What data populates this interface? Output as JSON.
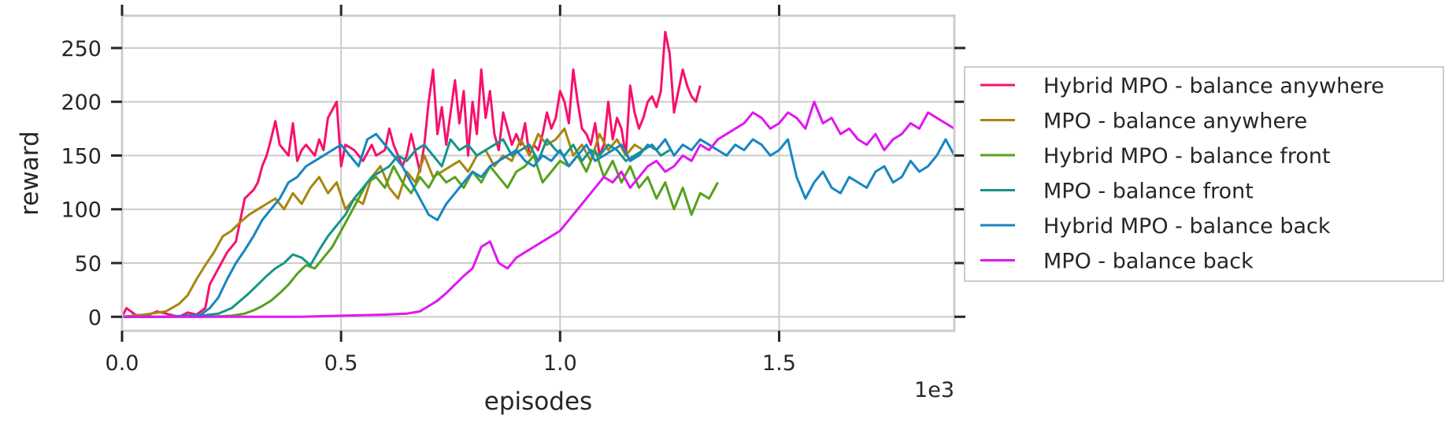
{
  "chart_data": {
    "type": "line",
    "xlabel": "episodes",
    "ylabel": "reward",
    "x_multiplier_label": "1e3",
    "xlim": [
      0,
      1.9
    ],
    "ylim": [
      -13,
      280
    ],
    "xticks": [
      0.0,
      0.5,
      1.0,
      1.5
    ],
    "xtick_labels": [
      "0.0",
      "0.5",
      "1.0",
      "1.5"
    ],
    "yticks": [
      0,
      50,
      100,
      150,
      200,
      250
    ],
    "ytick_labels": [
      "0",
      "50",
      "100",
      "150",
      "200",
      "250"
    ],
    "grid": true,
    "legend_position": "right, outside plot",
    "series": [
      {
        "name": "Hybrid MPO - balance anywhere",
        "color": "#f7106e",
        "x": [
          0.0,
          0.01,
          0.03,
          0.05,
          0.08,
          0.1,
          0.13,
          0.15,
          0.17,
          0.19,
          0.2,
          0.22,
          0.24,
          0.26,
          0.27,
          0.28,
          0.3,
          0.31,
          0.32,
          0.33,
          0.34,
          0.35,
          0.36,
          0.38,
          0.39,
          0.4,
          0.41,
          0.42,
          0.44,
          0.45,
          0.46,
          0.47,
          0.49,
          0.5,
          0.51,
          0.53,
          0.55,
          0.57,
          0.58,
          0.6,
          0.61,
          0.62,
          0.64,
          0.65,
          0.66,
          0.68,
          0.69,
          0.7,
          0.71,
          0.72,
          0.73,
          0.74,
          0.76,
          0.77,
          0.78,
          0.79,
          0.8,
          0.81,
          0.82,
          0.83,
          0.84,
          0.85,
          0.86,
          0.87,
          0.88,
          0.89,
          0.9,
          0.91,
          0.92,
          0.93,
          0.94,
          0.95,
          0.96,
          0.97,
          0.98,
          0.99,
          1.0,
          1.01,
          1.02,
          1.03,
          1.04,
          1.05,
          1.06,
          1.07,
          1.08,
          1.09,
          1.1,
          1.11,
          1.12,
          1.13,
          1.14,
          1.15,
          1.16,
          1.17,
          1.18,
          1.19,
          1.2,
          1.21,
          1.22,
          1.23,
          1.24,
          1.25,
          1.26,
          1.27,
          1.28,
          1.29,
          1.3,
          1.31,
          1.32
        ],
        "y": [
          0,
          8,
          2,
          0,
          5,
          3,
          0,
          4,
          2,
          8,
          30,
          45,
          60,
          70,
          90,
          110,
          118,
          125,
          140,
          150,
          165,
          182,
          160,
          150,
          180,
          145,
          155,
          160,
          150,
          165,
          155,
          185,
          200,
          140,
          160,
          155,
          145,
          160,
          150,
          155,
          175,
          160,
          140,
          150,
          170,
          135,
          160,
          200,
          230,
          170,
          195,
          160,
          220,
          180,
          210,
          150,
          200,
          170,
          230,
          185,
          210,
          170,
          155,
          190,
          175,
          160,
          170,
          160,
          180,
          150,
          160,
          155,
          170,
          190,
          175,
          185,
          210,
          200,
          180,
          230,
          200,
          175,
          170,
          160,
          180,
          150,
          160,
          200,
          165,
          185,
          175,
          150,
          215,
          190,
          175,
          185,
          200,
          205,
          195,
          210,
          265,
          245,
          190,
          210,
          230,
          215,
          205,
          200,
          215
        ]
      },
      {
        "name": "MPO - balance anywhere",
        "color": "#a8860e",
        "x": [
          0.0,
          0.05,
          0.1,
          0.13,
          0.15,
          0.17,
          0.19,
          0.21,
          0.23,
          0.25,
          0.27,
          0.29,
          0.31,
          0.33,
          0.35,
          0.37,
          0.39,
          0.41,
          0.43,
          0.45,
          0.47,
          0.49,
          0.51,
          0.53,
          0.55,
          0.57,
          0.59,
          0.61,
          0.63,
          0.65,
          0.67,
          0.69,
          0.71,
          0.73,
          0.75,
          0.77,
          0.79,
          0.81,
          0.83,
          0.85,
          0.87,
          0.89,
          0.91,
          0.93,
          0.95,
          0.97,
          0.99,
          1.01,
          1.03,
          1.05,
          1.07,
          1.09,
          1.11,
          1.13,
          1.15,
          1.17,
          1.19
        ],
        "y": [
          0,
          2,
          5,
          12,
          20,
          35,
          48,
          60,
          75,
          80,
          88,
          95,
          100,
          105,
          110,
          100,
          115,
          105,
          120,
          130,
          115,
          125,
          100,
          110,
          105,
          130,
          140,
          120,
          110,
          135,
          125,
          150,
          130,
          135,
          140,
          145,
          135,
          150,
          155,
          140,
          150,
          145,
          165,
          150,
          170,
          160,
          165,
          175,
          150,
          160,
          145,
          170,
          155,
          165,
          150,
          160,
          155
        ]
      },
      {
        "name": "Hybrid MPO - balance front",
        "color": "#56a11e",
        "x": [
          0.0,
          0.1,
          0.2,
          0.25,
          0.28,
          0.3,
          0.32,
          0.34,
          0.36,
          0.38,
          0.4,
          0.42,
          0.44,
          0.46,
          0.48,
          0.5,
          0.52,
          0.54,
          0.56,
          0.58,
          0.6,
          0.62,
          0.64,
          0.66,
          0.68,
          0.7,
          0.72,
          0.74,
          0.76,
          0.78,
          0.8,
          0.82,
          0.84,
          0.86,
          0.88,
          0.9,
          0.92,
          0.94,
          0.96,
          0.98,
          1.0,
          1.02,
          1.04,
          1.06,
          1.08,
          1.1,
          1.12,
          1.14,
          1.16,
          1.18,
          1.2,
          1.22,
          1.24,
          1.26,
          1.28,
          1.3,
          1.32,
          1.34,
          1.36
        ],
        "y": [
          0,
          0,
          0,
          1,
          3,
          6,
          10,
          15,
          22,
          30,
          40,
          48,
          45,
          55,
          65,
          80,
          95,
          110,
          125,
          130,
          120,
          140,
          125,
          115,
          130,
          120,
          135,
          125,
          130,
          120,
          135,
          125,
          140,
          130,
          120,
          135,
          140,
          150,
          125,
          135,
          145,
          140,
          150,
          135,
          155,
          130,
          145,
          125,
          140,
          120,
          130,
          110,
          125,
          100,
          120,
          95,
          115,
          110,
          125
        ]
      },
      {
        "name": "MPO - balance front",
        "color": "#17948a",
        "x": [
          0.0,
          0.1,
          0.18,
          0.22,
          0.25,
          0.27,
          0.29,
          0.31,
          0.33,
          0.35,
          0.37,
          0.39,
          0.41,
          0.43,
          0.45,
          0.47,
          0.49,
          0.51,
          0.53,
          0.55,
          0.57,
          0.59,
          0.61,
          0.63,
          0.65,
          0.67,
          0.69,
          0.71,
          0.73,
          0.75,
          0.77,
          0.79,
          0.81,
          0.83,
          0.85,
          0.87,
          0.89,
          0.91,
          0.93,
          0.95,
          0.97,
          0.99,
          1.01,
          1.03,
          1.05,
          1.07,
          1.09,
          1.11,
          1.13,
          1.15,
          1.17,
          1.19,
          1.21,
          1.23,
          1.25
        ],
        "y": [
          0,
          0,
          1,
          3,
          8,
          15,
          22,
          30,
          38,
          45,
          50,
          58,
          55,
          48,
          62,
          75,
          85,
          95,
          110,
          120,
          130,
          135,
          140,
          150,
          145,
          155,
          160,
          150,
          140,
          165,
          155,
          160,
          150,
          155,
          160,
          165,
          150,
          155,
          160,
          145,
          165,
          155,
          150,
          160,
          145,
          155,
          150,
          160,
          155,
          145,
          150,
          155,
          160,
          150,
          155
        ]
      },
      {
        "name": "Hybrid MPO - balance back",
        "color": "#1786c2",
        "x": [
          0.0,
          0.1,
          0.18,
          0.2,
          0.22,
          0.24,
          0.26,
          0.28,
          0.3,
          0.32,
          0.34,
          0.36,
          0.38,
          0.4,
          0.42,
          0.44,
          0.46,
          0.48,
          0.5,
          0.52,
          0.54,
          0.56,
          0.58,
          0.6,
          0.62,
          0.64,
          0.66,
          0.68,
          0.7,
          0.72,
          0.74,
          0.76,
          0.78,
          0.8,
          0.82,
          0.84,
          0.86,
          0.88,
          0.9,
          0.92,
          0.94,
          0.96,
          0.98,
          1.0,
          1.02,
          1.04,
          1.06,
          1.08,
          1.1,
          1.12,
          1.14,
          1.16,
          1.18,
          1.2,
          1.22,
          1.24,
          1.26,
          1.28,
          1.3,
          1.32,
          1.34,
          1.36,
          1.38,
          1.4,
          1.42,
          1.44,
          1.46,
          1.48,
          1.5,
          1.52,
          1.54,
          1.56,
          1.58,
          1.6,
          1.62,
          1.64,
          1.66,
          1.68,
          1.7,
          1.72,
          1.74,
          1.76,
          1.78,
          1.8,
          1.82,
          1.84,
          1.86,
          1.88,
          1.9
        ],
        "y": [
          0,
          0,
          2,
          8,
          18,
          35,
          50,
          62,
          75,
          90,
          100,
          110,
          125,
          130,
          140,
          145,
          150,
          155,
          160,
          150,
          140,
          165,
          170,
          160,
          150,
          140,
          125,
          110,
          95,
          90,
          105,
          115,
          125,
          135,
          130,
          140,
          145,
          150,
          155,
          145,
          140,
          150,
          145,
          155,
          140,
          150,
          160,
          145,
          150,
          155,
          160,
          145,
          150,
          160,
          155,
          165,
          150,
          160,
          155,
          165,
          160,
          155,
          150,
          160,
          155,
          165,
          160,
          150,
          155,
          165,
          130,
          110,
          125,
          135,
          120,
          115,
          130,
          125,
          120,
          135,
          140,
          125,
          130,
          145,
          135,
          140,
          150,
          165,
          150
        ]
      },
      {
        "name": "MPO - balance back",
        "color": "#e017f2",
        "x": [
          0.0,
          0.1,
          0.2,
          0.3,
          0.4,
          0.5,
          0.6,
          0.65,
          0.68,
          0.7,
          0.72,
          0.74,
          0.76,
          0.78,
          0.8,
          0.82,
          0.84,
          0.86,
          0.88,
          0.9,
          0.92,
          0.94,
          0.96,
          0.98,
          1.0,
          1.02,
          1.04,
          1.06,
          1.08,
          1.1,
          1.12,
          1.14,
          1.16,
          1.18,
          1.2,
          1.22,
          1.24,
          1.26,
          1.28,
          1.3,
          1.32,
          1.34,
          1.36,
          1.38,
          1.4,
          1.42,
          1.44,
          1.46,
          1.48,
          1.5,
          1.52,
          1.54,
          1.56,
          1.58,
          1.6,
          1.62,
          1.64,
          1.66,
          1.68,
          1.7,
          1.72,
          1.74,
          1.76,
          1.78,
          1.8,
          1.82,
          1.84,
          1.86,
          1.88,
          1.9
        ],
        "y": [
          0,
          0,
          0,
          0,
          0,
          1,
          2,
          3,
          5,
          10,
          15,
          22,
          30,
          38,
          45,
          65,
          70,
          50,
          45,
          55,
          60,
          65,
          70,
          75,
          80,
          90,
          100,
          110,
          120,
          130,
          125,
          135,
          120,
          130,
          140,
          145,
          135,
          140,
          150,
          145,
          160,
          155,
          165,
          170,
          175,
          180,
          190,
          185,
          175,
          180,
          190,
          185,
          175,
          200,
          180,
          185,
          170,
          175,
          165,
          160,
          170,
          155,
          165,
          170,
          180,
          175,
          190,
          185,
          180,
          175
        ]
      }
    ]
  }
}
